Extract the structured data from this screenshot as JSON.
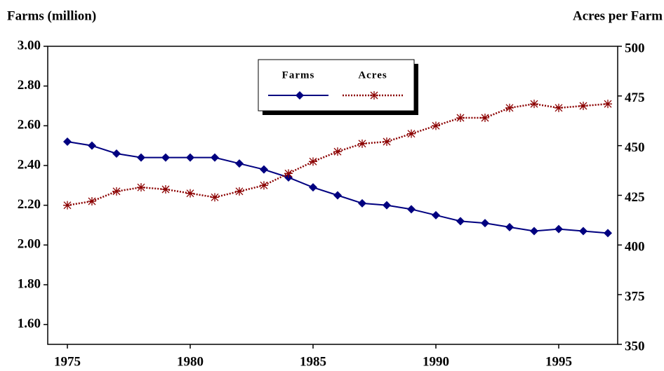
{
  "chart_data": {
    "type": "line",
    "y_label": "Farms (million)",
    "y2_label": "Acres per Farm",
    "x": [
      1975,
      1976,
      1977,
      1978,
      1979,
      1980,
      1981,
      1982,
      1983,
      1984,
      1985,
      1986,
      1987,
      1988,
      1989,
      1990,
      1991,
      1992,
      1993,
      1994,
      1995,
      1996,
      1997
    ],
    "xlim": [
      1974.2,
      1997.4
    ],
    "xticks": [
      1975,
      1980,
      1985,
      1990,
      1995
    ],
    "ylim": [
      1.5,
      3.0
    ],
    "yticks": [
      {
        "value": 1.6,
        "label": "1.60"
      },
      {
        "value": 1.8,
        "label": "1.80"
      },
      {
        "value": 2.0,
        "label": "2.00"
      },
      {
        "value": 2.2,
        "label": "2.20"
      },
      {
        "value": 2.4,
        "label": "2.40"
      },
      {
        "value": 2.6,
        "label": "2.60"
      },
      {
        "value": 2.8,
        "label": "2.80"
      },
      {
        "value": 3.0,
        "label": "3.00"
      }
    ],
    "y2lim": [
      350,
      500
    ],
    "y2ticks": [
      350,
      375,
      400,
      425,
      450,
      475,
      500
    ],
    "grid": false,
    "series": [
      {
        "name": "Farms",
        "color": "#000080",
        "marker": "diamond",
        "values": [
          2.52,
          2.5,
          2.46,
          2.44,
          2.44,
          2.44,
          2.44,
          2.41,
          2.38,
          2.34,
          2.29,
          2.25,
          2.21,
          2.2,
          2.18,
          2.15,
          2.12,
          2.11,
          2.09,
          2.07,
          2.08,
          2.07,
          2.06
        ]
      },
      {
        "name": "Acres",
        "color": "#8b0000",
        "marker": "asterisk",
        "dashed": true,
        "axis": "y2",
        "values": [
          420,
          422,
          427,
          429,
          428,
          426,
          424,
          427,
          430,
          436,
          442,
          447,
          451,
          452,
          456,
          460,
          464,
          464,
          469,
          471,
          469,
          470,
          471
        ]
      }
    ]
  }
}
